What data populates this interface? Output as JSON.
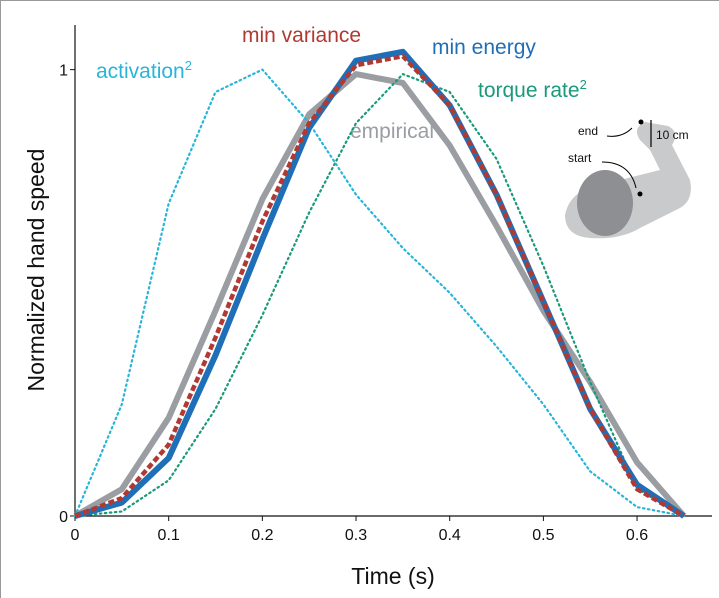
{
  "chart_data": {
    "type": "line",
    "x_label": "Time (s)",
    "y_label": "Normalized hand speed",
    "x": [
      0,
      0.05,
      0.1,
      0.15,
      0.2,
      0.25,
      0.3,
      0.35,
      0.4,
      0.45,
      0.5,
      0.55,
      0.6,
      0.65
    ],
    "series": [
      {
        "name": "empirical",
        "color": "#9a9da2",
        "style": "solid",
        "values": [
          0,
          0.06,
          0.22,
          0.46,
          0.71,
          0.9,
          0.99,
          0.97,
          0.83,
          0.65,
          0.46,
          0.3,
          0.12,
          0
        ]
      },
      {
        "name": "torque rate",
        "name_sup": "2",
        "color": "#1a9a7a",
        "style": "dotted",
        "values": [
          0,
          0.01,
          0.08,
          0.24,
          0.45,
          0.68,
          0.88,
          0.99,
          0.95,
          0.8,
          0.56,
          0.3,
          0.06,
          0
        ]
      },
      {
        "name": "activation",
        "name_sup": "2",
        "color": "#29b5d8",
        "style": "dotted",
        "values": [
          0,
          0.25,
          0.7,
          0.95,
          1.0,
          0.88,
          0.72,
          0.6,
          0.5,
          0.38,
          0.25,
          0.1,
          0.02,
          0
        ]
      },
      {
        "name": "min energy",
        "color": "#1f6fb8",
        "style": "solid",
        "values": [
          0,
          0.03,
          0.13,
          0.36,
          0.62,
          0.87,
          1.02,
          1.04,
          0.92,
          0.72,
          0.48,
          0.24,
          0.07,
          0
        ]
      },
      {
        "name": "min variance",
        "color": "#b03a32",
        "style": "dashed",
        "values": [
          0,
          0.04,
          0.16,
          0.4,
          0.66,
          0.88,
          1.01,
          1.03,
          0.92,
          0.72,
          0.48,
          0.24,
          0.06,
          0
        ]
      }
    ],
    "xlim": [
      0,
      0.68
    ],
    "ylim": [
      0,
      1.1
    ],
    "xticks": [
      0,
      0.1,
      0.2,
      0.3,
      0.4,
      0.5,
      0.6
    ],
    "yticks": [
      0,
      1
    ],
    "inset": {
      "end": "end",
      "start": "start",
      "scale": "10 cm"
    }
  }
}
